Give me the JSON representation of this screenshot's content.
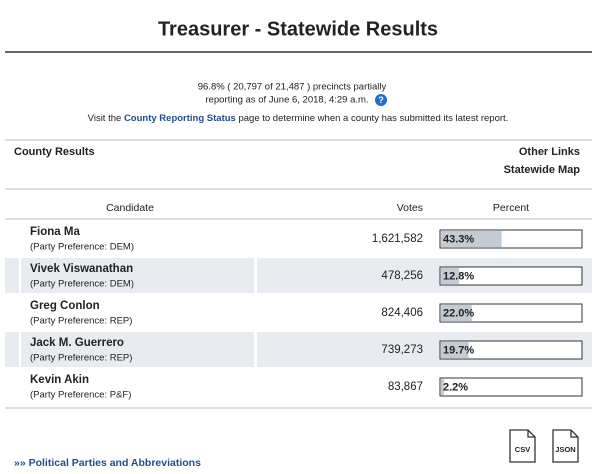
{
  "header": {
    "title": "Treasurer - Statewide Results"
  },
  "status": {
    "line1": "96.8% ( 20,797 of 21,487 ) precincts partially",
    "line2": "reporting as of June 6, 2018, 4:29 a.m.",
    "visit_before": "Visit the ",
    "visit_link": "County Reporting Status",
    "visit_after": " page to determine when a county has submitted its latest report."
  },
  "county_results": "County Results",
  "other_links": {
    "title": "Other Links",
    "statewide_map": "Statewide Map"
  },
  "table": {
    "columns": [
      "Candidate",
      "Votes",
      "Percent"
    ],
    "rows": [
      {
        "name": "Fiona Ma",
        "party": "(Party Preference: DEM)",
        "votes": "1,621,582",
        "percent": 43.3,
        "percent_label": "43.3%"
      },
      {
        "name": "Vivek Viswanathan",
        "party": "(Party Preference: DEM)",
        "votes": "478,256",
        "percent": 12.8,
        "percent_label": "12.8%"
      },
      {
        "name": "Greg Conlon",
        "party": "(Party Preference: REP)",
        "votes": "824,406",
        "percent": 22.0,
        "percent_label": "22.0%"
      },
      {
        "name": "Jack M. Guerrero",
        "party": "(Party Preference: REP)",
        "votes": "739,273",
        "percent": 19.7,
        "percent_label": "19.7%"
      },
      {
        "name": "Kevin Akin",
        "party": "(Party Preference: P&F)",
        "votes": "83,867",
        "percent": 2.2,
        "percent_label": "2.2%"
      }
    ]
  },
  "downloads": [
    "CSV",
    "JSON"
  ],
  "footer_link": "»» Political Parties and Abbreviations"
}
